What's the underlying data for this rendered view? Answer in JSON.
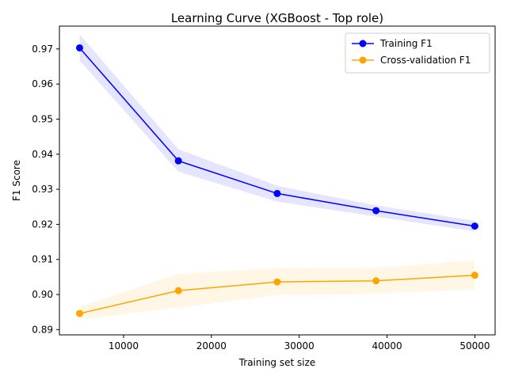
{
  "chart_data": {
    "type": "line",
    "title": "Learning Curve (XGBoost - Top role)",
    "xlabel": "Training set size",
    "ylabel": "F1 Score",
    "xlim": [
      2700,
      52300
    ],
    "ylim": [
      0.8885,
      0.9765
    ],
    "x": [
      4999,
      16246,
      27493,
      38740,
      49987
    ],
    "x_ticks": [
      10000,
      20000,
      30000,
      40000,
      50000
    ],
    "x_tick_labels": [
      "10000",
      "20000",
      "30000",
      "40000",
      "50000"
    ],
    "y_ticks": [
      0.89,
      0.9,
      0.91,
      0.92,
      0.93,
      0.94,
      0.95,
      0.96,
      0.97
    ],
    "y_tick_labels": [
      "0.89",
      "0.90",
      "0.91",
      "0.92",
      "0.93",
      "0.94",
      "0.95",
      "0.96",
      "0.97"
    ],
    "grid": false,
    "legend_position": "top-right",
    "series": [
      {
        "name": "Training F1",
        "color": "#0000ff",
        "fill_color": "#0000ff",
        "values": [
          0.9703,
          0.9381,
          0.9288,
          0.9239,
          0.9195
        ],
        "lower": [
          0.9667,
          0.935,
          0.9265,
          0.9222,
          0.918
        ],
        "upper": [
          0.9742,
          0.9414,
          0.931,
          0.9254,
          0.921
        ]
      },
      {
        "name": "Cross-validation F1",
        "color": "#ffa500",
        "fill_color": "#ffa500",
        "values": [
          0.8946,
          0.9011,
          0.9036,
          0.9039,
          0.9055
        ],
        "lower": [
          0.8928,
          0.8963,
          0.8998,
          0.9003,
          0.9015
        ],
        "upper": [
          0.8965,
          0.9059,
          0.9075,
          0.9076,
          0.9097
        ]
      }
    ]
  }
}
